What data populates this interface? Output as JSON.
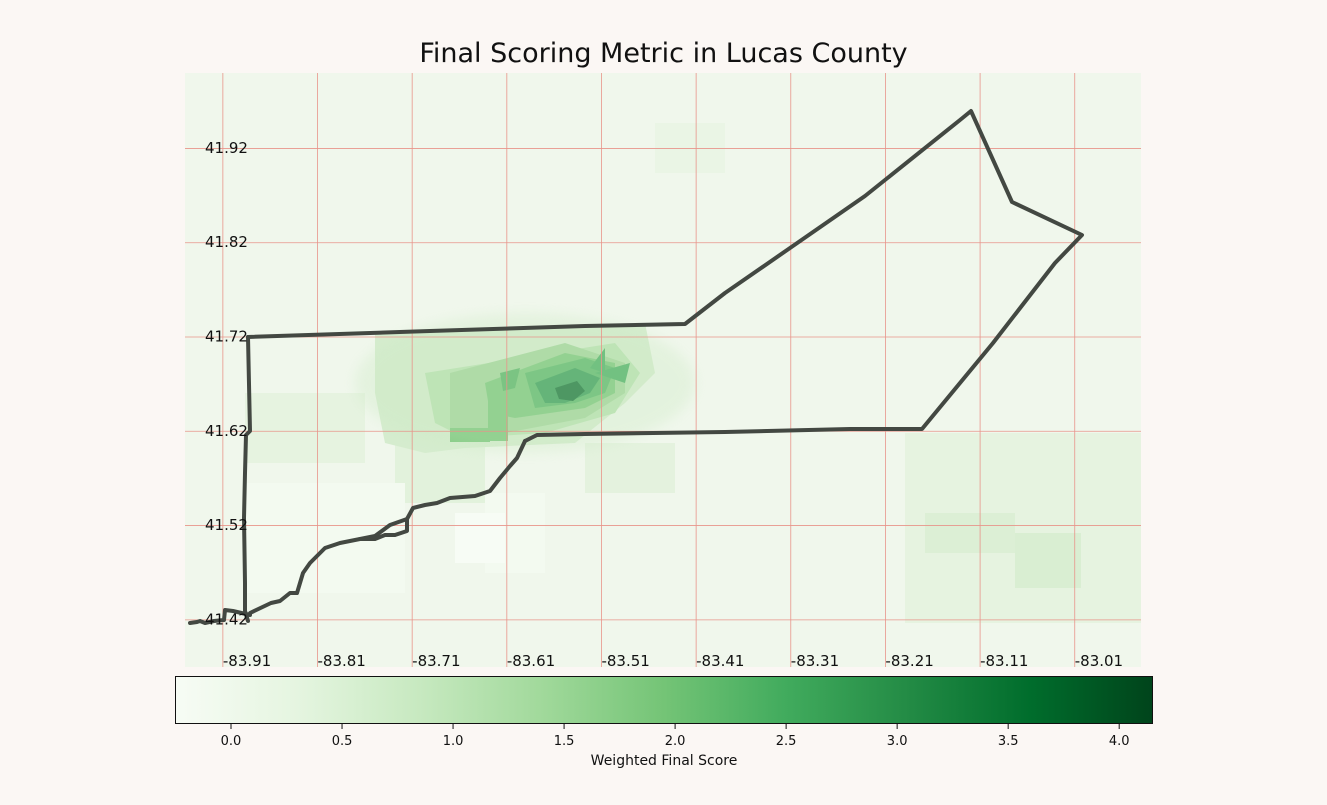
{
  "title": "Final Scoring Metric in Lucas County",
  "map": {
    "lon_range": [
      -83.95,
      -82.94
    ],
    "lat_range": [
      41.37,
      42.0
    ],
    "lon_ticks": [
      "-83.91",
      "-83.81",
      "-83.71",
      "-83.61",
      "-83.51",
      "-83.41",
      "-83.31",
      "-83.21",
      "-83.11",
      "-83.01"
    ],
    "lat_ticks": [
      "41.92",
      "41.82",
      "41.72",
      "41.62",
      "41.52",
      "41.42"
    ],
    "gridline_color": "#e8948a",
    "boundary_color": "#434842",
    "hotspot": "Toledo city center (high weighted score)"
  },
  "colorbar": {
    "label": "Weighted Final Score",
    "ticks": [
      "0.0",
      "0.5",
      "1.0",
      "1.5",
      "2.0",
      "2.5",
      "3.0",
      "3.5",
      "4.0"
    ],
    "min": -0.25,
    "max": 4.15,
    "colormap": "Greens",
    "stops": [
      "#f7fcf5",
      "#e5f5e0",
      "#c7e9c0",
      "#a1d99b",
      "#74c476",
      "#41ab5d",
      "#238b45",
      "#006d2c",
      "#00441b"
    ]
  }
}
